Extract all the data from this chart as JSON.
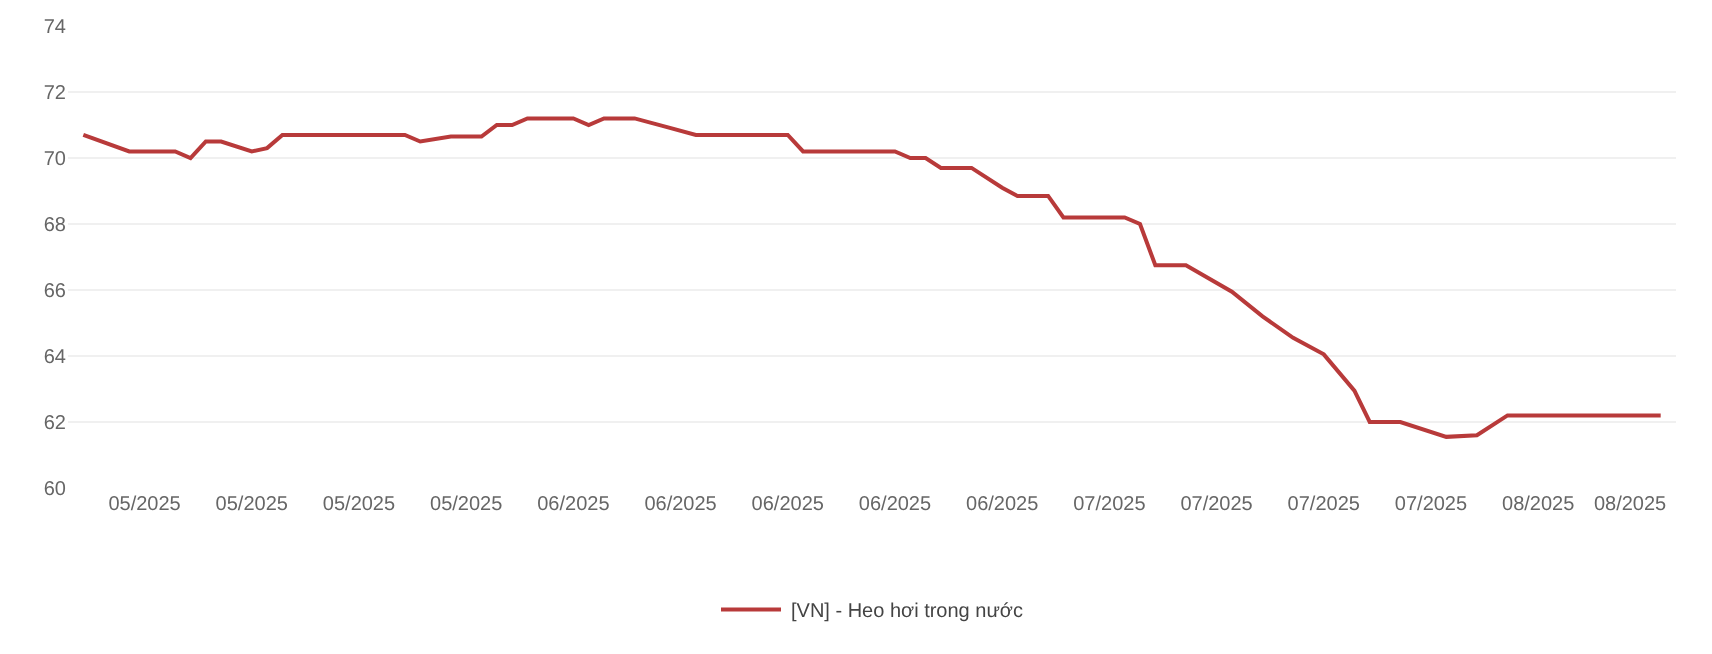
{
  "chart_data": {
    "type": "line",
    "x": [
      "2025-05-01",
      "2025-05-04",
      "2025-05-07",
      "2025-05-08",
      "2025-05-09",
      "2025-05-10",
      "2025-05-12",
      "2025-05-13",
      "2025-05-14",
      "2025-05-22",
      "2025-05-23",
      "2025-05-25",
      "2025-05-27",
      "2025-05-28",
      "2025-05-29",
      "2025-05-30",
      "2025-06-02",
      "2025-06-03",
      "2025-06-04",
      "2025-06-06",
      "2025-06-08",
      "2025-06-10",
      "2025-06-16",
      "2025-06-17",
      "2025-06-23",
      "2025-06-24",
      "2025-06-25",
      "2025-06-26",
      "2025-06-28",
      "2025-06-30",
      "2025-07-01",
      "2025-07-03",
      "2025-07-04",
      "2025-07-08",
      "2025-07-09",
      "2025-07-10",
      "2025-07-12",
      "2025-07-15",
      "2025-07-17",
      "2025-07-19",
      "2025-07-21",
      "2025-07-23",
      "2025-07-24",
      "2025-07-26",
      "2025-07-29",
      "2025-07-31",
      "2025-08-02",
      "2025-08-12"
    ],
    "series": [
      {
        "name": "[VN] - Heo hơi trong nước",
        "color": "#b83a3a",
        "values": [
          70.7,
          70.2,
          70.2,
          70.0,
          70.5,
          70.5,
          70.2,
          70.3,
          70.7,
          70.7,
          70.5,
          70.65,
          70.65,
          71.0,
          71.0,
          71.2,
          71.2,
          71.0,
          71.2,
          71.2,
          70.95,
          70.7,
          70.7,
          70.2,
          70.2,
          70.0,
          70.0,
          69.7,
          69.7,
          69.1,
          68.85,
          68.85,
          68.2,
          68.2,
          68.0,
          66.75,
          66.75,
          65.95,
          65.2,
          64.55,
          64.05,
          62.95,
          62.0,
          62.0,
          61.55,
          61.6,
          62.2,
          62.2
        ]
      }
    ],
    "xlim": [
      "2025-04-30",
      "2025-08-13"
    ],
    "xticks": [
      {
        "value": "2025-05-05",
        "label": "05/2025"
      },
      {
        "value": "2025-05-12",
        "label": "05/2025"
      },
      {
        "value": "2025-05-19",
        "label": "05/2025"
      },
      {
        "value": "2025-05-26",
        "label": "05/2025"
      },
      {
        "value": "2025-06-02",
        "label": "06/2025"
      },
      {
        "value": "2025-06-09",
        "label": "06/2025"
      },
      {
        "value": "2025-06-16",
        "label": "06/2025"
      },
      {
        "value": "2025-06-23",
        "label": "06/2025"
      },
      {
        "value": "2025-06-30",
        "label": "06/2025"
      },
      {
        "value": "2025-07-07",
        "label": "07/2025"
      },
      {
        "value": "2025-07-14",
        "label": "07/2025"
      },
      {
        "value": "2025-07-21",
        "label": "07/2025"
      },
      {
        "value": "2025-07-28",
        "label": "07/2025"
      },
      {
        "value": "2025-08-04",
        "label": "08/2025"
      },
      {
        "value": "2025-08-10",
        "label": "08/2025"
      }
    ],
    "ylim": [
      60,
      74
    ],
    "yticks": [
      60,
      62,
      64,
      66,
      68,
      70,
      72,
      74
    ],
    "grid": "y",
    "legend": "bottom",
    "marker": "none",
    "line_style": "solid"
  }
}
